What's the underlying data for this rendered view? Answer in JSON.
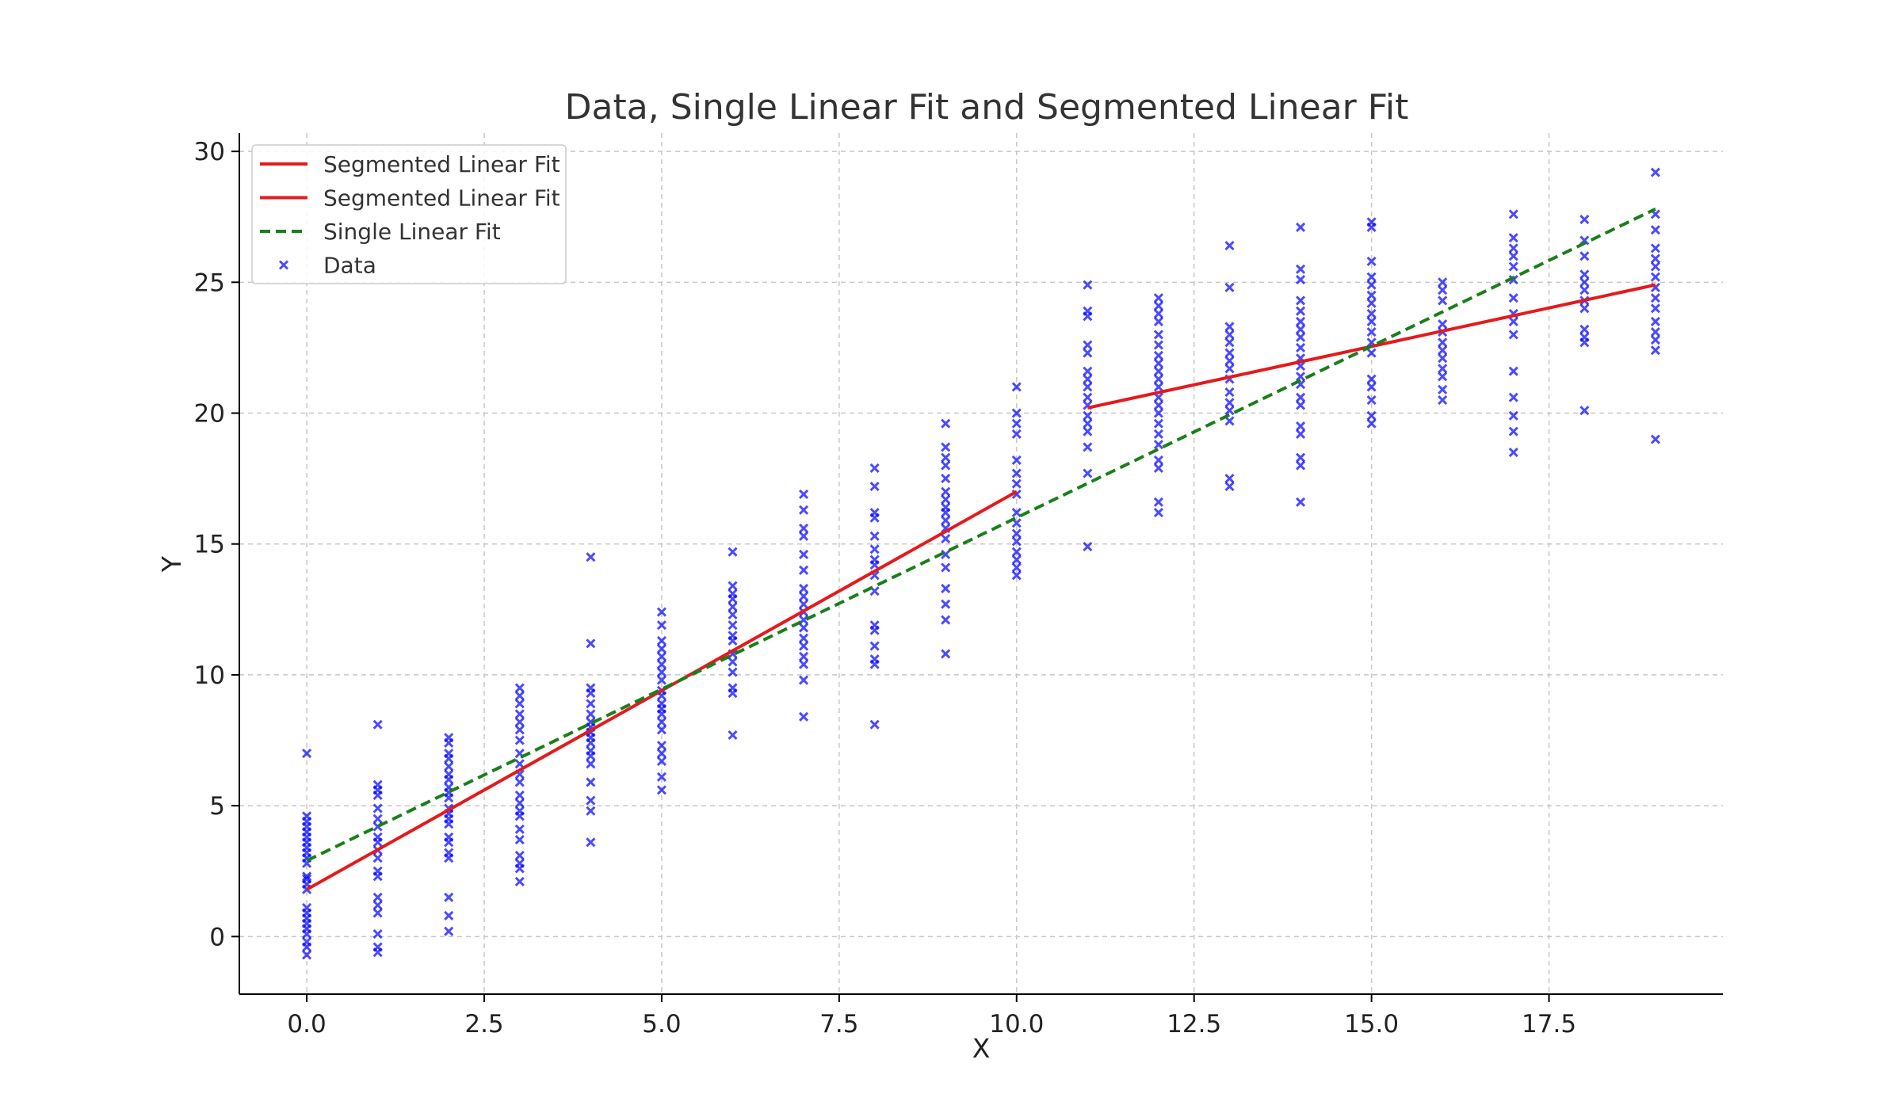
{
  "chart_data": {
    "type": "scatter",
    "title": "Data, Single Linear Fit and Segmented Linear Fit",
    "xlabel": "X",
    "ylabel": "Y",
    "xlim": [
      -0.95,
      19.95
    ],
    "ylim": [
      -2.2,
      30.7
    ],
    "xticks": [
      0,
      2.5,
      5,
      7.5,
      10,
      12.5,
      15,
      17.5
    ],
    "xtick_labels": [
      "0.0",
      "2.5",
      "5.0",
      "7.5",
      "10.0",
      "12.5",
      "15.0",
      "17.5"
    ],
    "yticks": [
      0,
      5,
      10,
      15,
      20,
      25,
      30
    ],
    "ytick_labels": [
      "0",
      "5",
      "10",
      "15",
      "20",
      "25",
      "30"
    ],
    "grid": true,
    "legend_position": "top-left",
    "legend": [
      {
        "label": "Segmented Linear Fit",
        "style": "solid",
        "color": "#e41a1c"
      },
      {
        "label": "Segmented Linear Fit",
        "style": "solid",
        "color": "#e41a1c"
      },
      {
        "label": "Single Linear Fit",
        "style": "dashed",
        "color": "#1a7f1a"
      },
      {
        "label": "Data",
        "style": "marker-x",
        "color": "#0000ff"
      }
    ],
    "series": [
      {
        "name": "Segmented Linear Fit",
        "type": "line",
        "style": "solid",
        "color": "#e41a1c",
        "x": [
          0,
          10
        ],
        "y": [
          1.8,
          17.0
        ]
      },
      {
        "name": "Segmented Linear Fit",
        "type": "line",
        "style": "solid",
        "color": "#e41a1c",
        "x": [
          11,
          19
        ],
        "y": [
          20.2,
          24.9
        ]
      },
      {
        "name": "Single Linear Fit",
        "type": "line",
        "style": "dashed",
        "color": "#1a7f1a",
        "x": [
          0,
          19
        ],
        "y": [
          2.9,
          27.8
        ]
      },
      {
        "name": "Data",
        "type": "scatter",
        "marker": "x",
        "color": "#0000ff",
        "points": [
          {
            "x": 0,
            "y": [
              -0.7,
              -0.4,
              -0.2,
              0.1,
              0.3,
              0.5,
              0.7,
              0.9,
              1.1,
              1.8,
              2.0,
              2.2,
              2.3,
              2.8,
              3.0,
              3.2,
              3.4,
              3.6,
              3.8,
              4.0,
              4.2,
              4.4,
              4.6,
              7.0
            ]
          },
          {
            "x": 1,
            "y": [
              -0.6,
              -0.4,
              0.1,
              0.9,
              1.2,
              1.5,
              2.3,
              2.5,
              3.0,
              3.3,
              3.6,
              3.8,
              4.2,
              4.5,
              4.9,
              5.4,
              5.6,
              5.8,
              8.1
            ]
          },
          {
            "x": 2,
            "y": [
              0.2,
              0.8,
              1.5,
              3.0,
              3.2,
              3.6,
              3.8,
              4.3,
              4.5,
              4.7,
              4.9,
              5.3,
              5.5,
              5.7,
              6.0,
              6.2,
              6.5,
              6.8,
              7.0,
              7.4,
              7.6
            ]
          },
          {
            "x": 3,
            "y": [
              2.1,
              2.6,
              2.8,
              3.1,
              3.7,
              4.1,
              4.6,
              4.8,
              5.1,
              5.4,
              5.9,
              6.2,
              6.6,
              7.0,
              7.5,
              7.9,
              8.2,
              8.5,
              8.9,
              9.2,
              9.5
            ]
          },
          {
            "x": 4,
            "y": [
              3.6,
              4.8,
              5.2,
              5.9,
              6.6,
              6.9,
              7.1,
              7.4,
              7.6,
              7.8,
              8.0,
              8.2,
              8.5,
              8.9,
              9.3,
              9.5,
              11.2,
              14.5
            ]
          },
          {
            "x": 5,
            "y": [
              5.6,
              6.1,
              6.7,
              7.0,
              7.3,
              7.9,
              8.2,
              8.5,
              8.7,
              8.9,
              9.2,
              9.4,
              9.8,
              10.1,
              10.4,
              10.7,
              11.0,
              11.3,
              11.9,
              12.4
            ]
          },
          {
            "x": 6,
            "y": [
              7.7,
              9.3,
              9.5,
              10.1,
              10.5,
              10.8,
              11.3,
              11.5,
              11.9,
              12.3,
              12.6,
              12.9,
              13.1,
              13.4,
              14.7
            ]
          },
          {
            "x": 7,
            "y": [
              8.4,
              9.8,
              10.4,
              10.7,
              11.1,
              11.4,
              11.8,
              12.1,
              12.4,
              12.7,
              13.0,
              13.3,
              14.0,
              14.6,
              15.3,
              15.6,
              16.3,
              16.9
            ]
          },
          {
            "x": 8,
            "y": [
              8.1,
              10.4,
              10.6,
              11.1,
              11.7,
              11.9,
              13.2,
              13.8,
              14.2,
              14.4,
              14.8,
              15.3,
              16.0,
              16.2,
              17.2,
              17.9
            ]
          },
          {
            "x": 9,
            "y": [
              10.8,
              12.1,
              12.7,
              13.3,
              14.1,
              14.6,
              15.2,
              15.6,
              15.9,
              16.2,
              16.4,
              16.7,
              17.0,
              17.5,
              18.0,
              18.3,
              18.7,
              19.6
            ]
          },
          {
            "x": 10,
            "y": [
              13.8,
              14.1,
              14.4,
              14.7,
              15.1,
              15.4,
              15.8,
              16.2,
              16.9,
              17.3,
              17.7,
              18.2,
              19.2,
              19.6,
              20.0,
              21.0
            ]
          },
          {
            "x": 11,
            "y": [
              14.9,
              17.7,
              18.7,
              19.3,
              19.6,
              19.9,
              20.3,
              20.6,
              21.0,
              21.3,
              21.6,
              22.3,
              22.6,
              23.7,
              23.9,
              24.9
            ]
          },
          {
            "x": 12,
            "y": [
              16.2,
              16.6,
              17.9,
              18.2,
              18.8,
              19.2,
              19.6,
              20.0,
              20.3,
              20.6,
              21.0,
              21.3,
              21.6,
              21.9,
              22.2,
              22.6,
              23.0,
              23.5,
              23.8,
              24.1,
              24.4
            ]
          },
          {
            "x": 13,
            "y": [
              17.2,
              17.5,
              19.7,
              20.1,
              20.4,
              20.8,
              21.3,
              21.7,
              22.0,
              22.3,
              22.7,
              23.0,
              23.3,
              24.8,
              26.4
            ]
          },
          {
            "x": 14,
            "y": [
              16.6,
              18.0,
              18.3,
              19.2,
              19.5,
              20.3,
              20.6,
              21.1,
              21.4,
              21.8,
              22.1,
              22.5,
              22.9,
              23.2,
              23.5,
              23.9,
              24.3,
              25.1,
              25.5,
              27.1
            ]
          },
          {
            "x": 15,
            "y": [
              19.6,
              19.9,
              20.5,
              21.0,
              21.3,
              22.3,
              22.7,
              23.1,
              23.5,
              23.8,
              24.2,
              24.5,
              24.9,
              25.2,
              25.8,
              27.1,
              27.3
            ]
          },
          {
            "x": 16,
            "y": [
              20.5,
              20.9,
              21.4,
              21.7,
              22.1,
              22.4,
              22.7,
              23.1,
              23.4,
              24.3,
              24.7,
              25.0
            ]
          },
          {
            "x": 17,
            "y": [
              18.5,
              19.3,
              19.9,
              20.6,
              21.6,
              23.0,
              23.5,
              23.8,
              24.4,
              25.1,
              25.6,
              26.0,
              26.3,
              26.7,
              27.6
            ]
          },
          {
            "x": 18,
            "y": [
              20.1,
              22.7,
              22.9,
              23.2,
              24.0,
              24.3,
              24.7,
              25.0,
              25.3,
              26.0,
              26.6,
              27.4
            ]
          },
          {
            "x": 19,
            "y": [
              19.0,
              22.4,
              22.8,
              23.1,
              23.5,
              24.0,
              24.4,
              24.8,
              25.2,
              25.6,
              25.9,
              26.3,
              27.0,
              27.6,
              29.2
            ]
          }
        ]
      }
    ]
  }
}
